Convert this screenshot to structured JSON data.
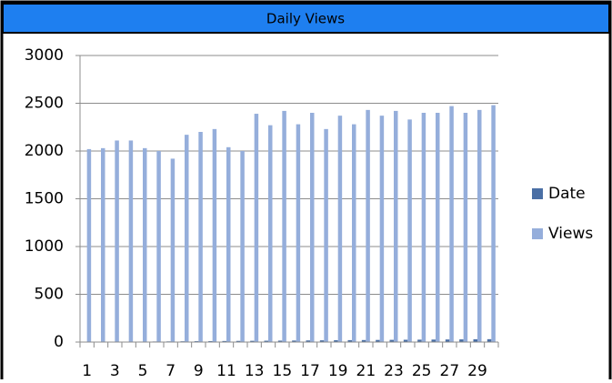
{
  "chart_data": {
    "type": "bar",
    "title": "Daily Views",
    "categories": [
      1,
      null,
      3,
      null,
      5,
      null,
      7,
      null,
      9,
      null,
      11,
      null,
      13,
      null,
      15,
      null,
      17,
      null,
      19,
      null,
      21,
      null,
      23,
      null,
      25,
      null,
      27,
      null,
      29,
      null
    ],
    "series": [
      {
        "name": "Date",
        "color": "#4a6fa5",
        "values": [
          1,
          2,
          3,
          4,
          5,
          6,
          7,
          8,
          9,
          10,
          11,
          12,
          13,
          14,
          15,
          16,
          17,
          18,
          19,
          20,
          21,
          22,
          23,
          24,
          25,
          26,
          27,
          28,
          29,
          30
        ]
      },
      {
        "name": "Views",
        "color": "#95aedb",
        "values": [
          2020,
          2030,
          2110,
          2110,
          2030,
          2000,
          1920,
          2170,
          2200,
          2230,
          2040,
          2000,
          2390,
          2270,
          2420,
          2280,
          2400,
          2230,
          2370,
          2280,
          2430,
          2370,
          2420,
          2330,
          2400,
          2400,
          2470,
          2400,
          2430,
          2480
        ]
      }
    ],
    "ylim": [
      0,
      3000
    ],
    "yticks": [
      0,
      500,
      1000,
      1500,
      2000,
      2500,
      3000
    ],
    "grid": true,
    "legend": "right"
  }
}
